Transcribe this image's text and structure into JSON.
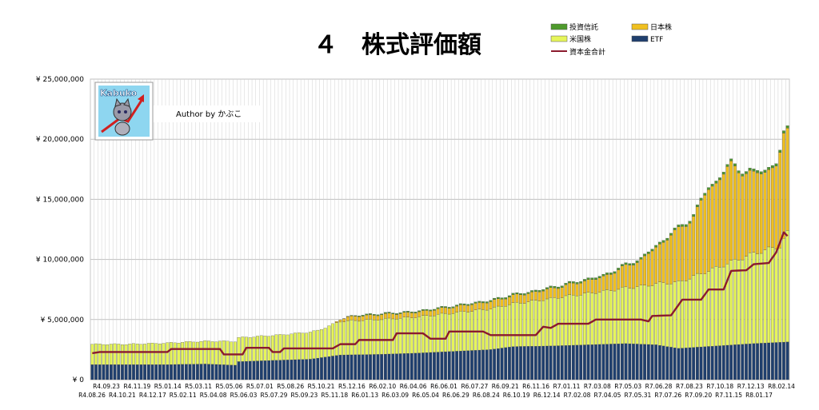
{
  "chart_data": {
    "type": "bar",
    "title": "４　株式評価額",
    "author_text": "Author by かぶこ",
    "logo_text": "Kabuko",
    "y_ticks": [
      "¥ 0",
      "¥ 5,000,000",
      "¥ 10,000,000",
      "¥ 15,000,000",
      "¥ 20,000,000",
      "¥ 25,000,000"
    ],
    "ylim": [
      0,
      25000000
    ],
    "grid": true,
    "legend_position": "top-right",
    "x_ticks_row1": [
      "R4.09.23",
      "R4.11.19",
      "R5.01.14",
      "R5.03.11",
      "R5.05.06",
      "R5.07.01",
      "R5.08.26",
      "R5.10.21",
      "R5.12.16",
      "R6.02.10",
      "R6.04.06",
      "R6.06.01",
      "R6.07.27",
      "R6.09.21",
      "R6.11.16",
      "R7.01.11",
      "R7.03.08",
      "R7.05.03",
      "R7.06.28",
      "R7.08.23",
      "R7.10.18",
      "R7.12.13",
      "R8.02.14"
    ],
    "x_ticks_row2": [
      "R4.08.26",
      "R4.10.21",
      "R4.12.17",
      "R5.02.11",
      "R5.04.08",
      "R5.06.03",
      "R5.07.29",
      "R5.09.23",
      "R5.11.18",
      "R6.01.13",
      "R6.03.09",
      "R6.05.04",
      "R6.06.29",
      "R6.08.24",
      "R6.10.19",
      "R6.12.14",
      "R7.02.08",
      "R7.04.05",
      "R7.05.31",
      "R7.07.26",
      "R7.09.20",
      "R7.11.15",
      "R8.01.17"
    ],
    "x_start": "R4.08.26",
    "x_end": "R8.02.14",
    "series": [
      {
        "name": "投資信託",
        "kind": "bar-stack",
        "color": "#4e9a2c"
      },
      {
        "name": "日本株",
        "kind": "bar-stack",
        "color": "#f0c020"
      },
      {
        "name": "米国株",
        "kind": "bar-stack",
        "color": "#e6f55a"
      },
      {
        "name": "ETF",
        "kind": "bar-stack",
        "color": "#1f3f6e"
      },
      {
        "name": "資本金合計",
        "kind": "line",
        "color": "#8b1a2e"
      }
    ],
    "bar_count": 186,
    "etf_anchors": [
      [
        0,
        1250000
      ],
      [
        20,
        1250000
      ],
      [
        30,
        1300000
      ],
      [
        38,
        1200000
      ],
      [
        39,
        1500000
      ],
      [
        48,
        1600000
      ],
      [
        58,
        1700000
      ],
      [
        66,
        2050000
      ],
      [
        76,
        2100000
      ],
      [
        86,
        2200000
      ],
      [
        96,
        2350000
      ],
      [
        106,
        2500000
      ],
      [
        112,
        2750000
      ],
      [
        122,
        2800000
      ],
      [
        132,
        2900000
      ],
      [
        142,
        3000000
      ],
      [
        150,
        2900000
      ],
      [
        156,
        2600000
      ],
      [
        166,
        2800000
      ],
      [
        176,
        3000000
      ],
      [
        186,
        3150000
      ]
    ],
    "us_anchors": [
      [
        0,
        1700000
      ],
      [
        10,
        1700000
      ],
      [
        20,
        1800000
      ],
      [
        30,
        1900000
      ],
      [
        40,
        2000000
      ],
      [
        50,
        2100000
      ],
      [
        60,
        2300000
      ],
      [
        66,
        2800000
      ],
      [
        76,
        2900000
      ],
      [
        86,
        3000000
      ],
      [
        96,
        3200000
      ],
      [
        106,
        3400000
      ],
      [
        116,
        3700000
      ],
      [
        126,
        4100000
      ],
      [
        136,
        4400000
      ],
      [
        146,
        4800000
      ],
      [
        156,
        5500000
      ],
      [
        166,
        6500000
      ],
      [
        176,
        7500000
      ],
      [
        183,
        8000000
      ],
      [
        186,
        9600000
      ]
    ],
    "jp_anchors": [
      [
        0,
        0
      ],
      [
        64,
        0
      ],
      [
        68,
        350000
      ],
      [
        76,
        400000
      ],
      [
        86,
        400000
      ],
      [
        96,
        500000
      ],
      [
        106,
        600000
      ],
      [
        116,
        700000
      ],
      [
        126,
        900000
      ],
      [
        136,
        1200000
      ],
      [
        146,
        2200000
      ],
      [
        150,
        3000000
      ],
      [
        154,
        4000000
      ],
      [
        160,
        5000000
      ],
      [
        164,
        6800000
      ],
      [
        170,
        8000000
      ],
      [
        176,
        6500000
      ],
      [
        182,
        6800000
      ],
      [
        184,
        8500000
      ],
      [
        186,
        8500000
      ]
    ],
    "fund_anchors": [
      [
        0,
        0
      ],
      [
        66,
        0
      ],
      [
        72,
        80000
      ],
      [
        100,
        100000
      ],
      [
        186,
        200000
      ]
    ],
    "capital_anchors": [
      [
        0,
        2200000
      ],
      [
        2,
        2300000
      ],
      [
        20,
        2300000
      ],
      [
        21,
        2550000
      ],
      [
        34,
        2550000
      ],
      [
        35,
        2100000
      ],
      [
        40,
        2100000
      ],
      [
        41,
        2650000
      ],
      [
        47,
        2650000
      ],
      [
        48,
        2300000
      ],
      [
        50,
        2300000
      ],
      [
        51,
        2600000
      ],
      [
        64,
        2600000
      ],
      [
        66,
        2950000
      ],
      [
        70,
        2950000
      ],
      [
        71,
        3300000
      ],
      [
        80,
        3300000
      ],
      [
        81,
        3850000
      ],
      [
        88,
        3850000
      ],
      [
        90,
        3400000
      ],
      [
        94,
        3400000
      ],
      [
        95,
        4000000
      ],
      [
        104,
        4000000
      ],
      [
        106,
        3700000
      ],
      [
        118,
        3700000
      ],
      [
        120,
        4400000
      ],
      [
        122,
        4300000
      ],
      [
        124,
        4650000
      ],
      [
        132,
        4650000
      ],
      [
        134,
        5000000
      ],
      [
        146,
        5000000
      ],
      [
        148,
        4850000
      ],
      [
        149,
        5300000
      ],
      [
        154,
        5350000
      ],
      [
        157,
        6650000
      ],
      [
        162,
        6650000
      ],
      [
        164,
        7500000
      ],
      [
        168,
        7500000
      ],
      [
        170,
        9050000
      ],
      [
        174,
        9100000
      ],
      [
        176,
        9600000
      ],
      [
        180,
        9700000
      ],
      [
        182,
        10600000
      ],
      [
        184,
        12250000
      ],
      [
        186,
        11650000
      ]
    ]
  }
}
